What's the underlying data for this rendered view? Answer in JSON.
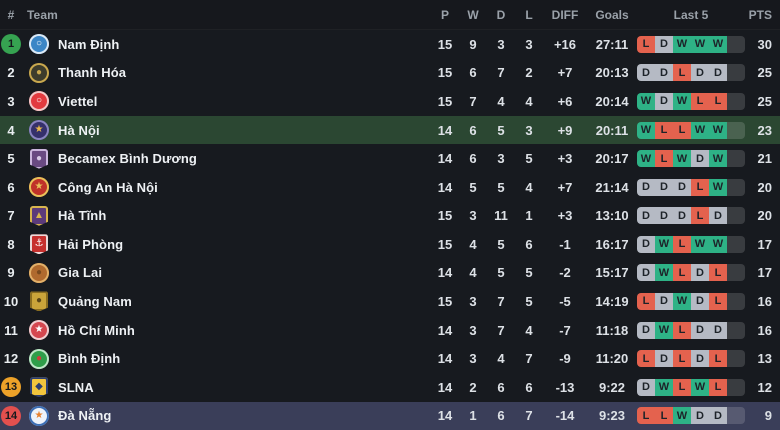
{
  "header": {
    "rank": "#",
    "team": "Team",
    "p": "P",
    "w": "W",
    "d": "D",
    "l": "L",
    "diff": "DIFF",
    "goals": "Goals",
    "last5": "Last 5",
    "pts": "PTS"
  },
  "colors": {
    "row_bg": "#171a1f",
    "highlight_green": "#2b4732",
    "highlight_purple": "#3a3e59",
    "win_badge": "#2eb286",
    "draw_badge": "#b5bac4",
    "loss_badge": "#e4624e",
    "promotion_circle": "#36a351",
    "playoff_circle": "#eda229",
    "relegation_circle": "#e2504e"
  },
  "rows": [
    {
      "pos": "1",
      "name": "Nam Định",
      "p": "15",
      "w": "9",
      "d": "3",
      "l": "3",
      "diff": "+16",
      "goals": "27:11",
      "last5": [
        "L",
        "D",
        "W",
        "W",
        "W"
      ],
      "pts": "30",
      "pos_badge": "green",
      "highlight": "",
      "logo": {
        "shape": "circle",
        "bg": "#3b86c6",
        "ring": "#dce9f5",
        "glyph": "○",
        "fg": "#ffffff"
      }
    },
    {
      "pos": "2",
      "name": "Thanh Hóa",
      "p": "15",
      "w": "6",
      "d": "7",
      "l": "2",
      "diff": "+7",
      "goals": "20:13",
      "last5": [
        "D",
        "D",
        "L",
        "D",
        "D"
      ],
      "pts": "25",
      "pos_badge": "",
      "highlight": "",
      "logo": {
        "shape": "circle",
        "bg": "#3d3c2c",
        "ring": "#c9a84e",
        "glyph": "●",
        "fg": "#c9a84e"
      }
    },
    {
      "pos": "3",
      "name": "Viettel",
      "p": "15",
      "w": "7",
      "d": "4",
      "l": "4",
      "diff": "+6",
      "goals": "20:14",
      "last5": [
        "W",
        "D",
        "W",
        "L",
        "L"
      ],
      "pts": "25",
      "pos_badge": "",
      "highlight": "",
      "logo": {
        "shape": "circle",
        "bg": "#e23a3f",
        "ring": "#f2c9c9",
        "glyph": "○",
        "fg": "#ffffff"
      }
    },
    {
      "pos": "4",
      "name": "Hà Nội",
      "p": "14",
      "w": "6",
      "d": "5",
      "l": "3",
      "diff": "+9",
      "goals": "20:11",
      "last5": [
        "W",
        "L",
        "L",
        "W",
        "W"
      ],
      "pts": "23",
      "pos_badge": "",
      "highlight": "green",
      "logo": {
        "shape": "circle",
        "bg": "#35306b",
        "ring": "#8a84c0",
        "glyph": "★",
        "fg": "#e8b84b"
      }
    },
    {
      "pos": "5",
      "name": "Becamex Bình Dương",
      "p": "14",
      "w": "6",
      "d": "3",
      "l": "5",
      "diff": "+3",
      "goals": "20:17",
      "last5": [
        "W",
        "L",
        "W",
        "D",
        "W"
      ],
      "pts": "21",
      "pos_badge": "",
      "highlight": "",
      "logo": {
        "shape": "shield",
        "bg": "#6a4a82",
        "ring": "#cbb6dd",
        "glyph": "●",
        "fg": "#d8cbe6"
      }
    },
    {
      "pos": "6",
      "name": "Công An Hà Nội",
      "p": "14",
      "w": "5",
      "d": "5",
      "l": "4",
      "diff": "+7",
      "goals": "21:14",
      "last5": [
        "D",
        "D",
        "D",
        "L",
        "W"
      ],
      "pts": "20",
      "pos_badge": "",
      "highlight": "",
      "logo": {
        "shape": "circle",
        "bg": "#c03229",
        "ring": "#e8c25a",
        "glyph": "★",
        "fg": "#e8c25a"
      }
    },
    {
      "pos": "7",
      "name": "Hà Tĩnh",
      "p": "15",
      "w": "3",
      "d": "11",
      "l": "1",
      "diff": "+3",
      "goals": "13:10",
      "last5": [
        "D",
        "D",
        "D",
        "L",
        "D"
      ],
      "pts": "20",
      "pos_badge": "",
      "highlight": "",
      "logo": {
        "shape": "shield",
        "bg": "#5c3b7a",
        "ring": "#d8b64e",
        "glyph": "▲",
        "fg": "#d8b64e"
      }
    },
    {
      "pos": "8",
      "name": "Hải Phòng",
      "p": "15",
      "w": "4",
      "d": "5",
      "l": "6",
      "diff": "-1",
      "goals": "16:17",
      "last5": [
        "D",
        "W",
        "L",
        "W",
        "W"
      ],
      "pts": "17",
      "pos_badge": "",
      "highlight": "",
      "logo": {
        "shape": "shield",
        "bg": "#c6302e",
        "ring": "#eadada",
        "glyph": "⚓",
        "fg": "#ffffff"
      }
    },
    {
      "pos": "9",
      "name": "Gia Lai",
      "p": "14",
      "w": "4",
      "d": "5",
      "l": "5",
      "diff": "-2",
      "goals": "15:17",
      "last5": [
        "D",
        "W",
        "L",
        "D",
        "L"
      ],
      "pts": "17",
      "pos_badge": "",
      "highlight": "",
      "logo": {
        "shape": "circle",
        "bg": "#b06a2e",
        "ring": "#e2b069",
        "glyph": "●",
        "fg": "#7a4a1e"
      }
    },
    {
      "pos": "10",
      "name": "Quảng Nam",
      "p": "15",
      "w": "3",
      "d": "7",
      "l": "5",
      "diff": "-5",
      "goals": "14:19",
      "last5": [
        "L",
        "D",
        "W",
        "D",
        "L"
      ],
      "pts": "16",
      "pos_badge": "",
      "highlight": "",
      "logo": {
        "shape": "shield",
        "bg": "#caa43a",
        "ring": "#8a6d20",
        "glyph": "●",
        "fg": "#5a4616"
      }
    },
    {
      "pos": "11",
      "name": "Hồ Chí Minh",
      "p": "14",
      "w": "3",
      "d": "7",
      "l": "4",
      "diff": "-7",
      "goals": "11:18",
      "last5": [
        "D",
        "W",
        "L",
        "D",
        "D"
      ],
      "pts": "16",
      "pos_badge": "",
      "highlight": "",
      "logo": {
        "shape": "circle",
        "bg": "#d5474f",
        "ring": "#f0d0d2",
        "glyph": "★",
        "fg": "#ffffff"
      }
    },
    {
      "pos": "12",
      "name": "Bình Định",
      "p": "14",
      "w": "3",
      "d": "4",
      "l": "7",
      "diff": "-9",
      "goals": "11:20",
      "last5": [
        "L",
        "D",
        "L",
        "D",
        "L"
      ],
      "pts": "13",
      "pos_badge": "",
      "highlight": "",
      "logo": {
        "shape": "circle",
        "bg": "#2f9e4a",
        "ring": "#bfe5c8",
        "glyph": "●",
        "fg": "#d23b3b"
      }
    },
    {
      "pos": "13",
      "name": "SLNA",
      "p": "14",
      "w": "2",
      "d": "6",
      "l": "6",
      "diff": "-13",
      "goals": "9:22",
      "last5": [
        "D",
        "W",
        "L",
        "W",
        "L"
      ],
      "pts": "12",
      "pos_badge": "amber",
      "highlight": "",
      "logo": {
        "shape": "shield",
        "bg": "#f2c53d",
        "ring": "#2c3e71",
        "glyph": "◆",
        "fg": "#2c3e71"
      }
    },
    {
      "pos": "14",
      "name": "Đà Nẵng",
      "p": "14",
      "w": "1",
      "d": "6",
      "l": "7",
      "diff": "-14",
      "goals": "9:23",
      "last5": [
        "L",
        "L",
        "W",
        "D",
        "D"
      ],
      "pts": "9",
      "pos_badge": "red",
      "highlight": "purple",
      "logo": {
        "shape": "circle",
        "bg": "#eef3fa",
        "ring": "#3d6fb5",
        "glyph": "★",
        "fg": "#e8812c"
      }
    }
  ]
}
